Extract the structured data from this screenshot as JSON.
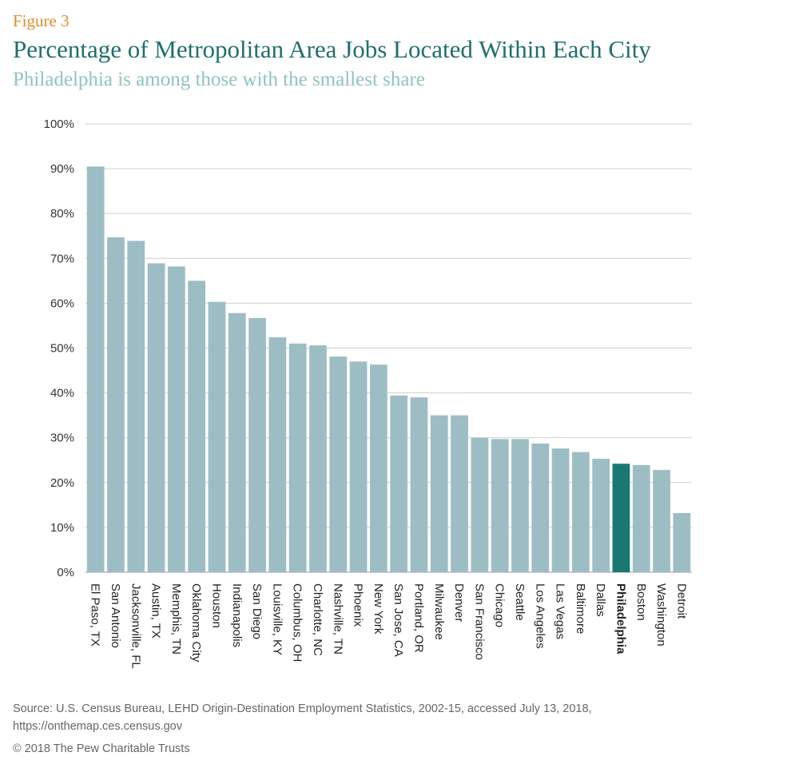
{
  "figure_label": "Figure 3",
  "colors": {
    "figure_label": "#e08e2a",
    "title": "#1e6f6c",
    "subtitle": "#8fc4c2",
    "bar": "#9dbdc5",
    "bar_highlight": "#1a7872",
    "grid": "#cfcfcf"
  },
  "chart_data": {
    "type": "bar",
    "title": "Percentage of Metropolitan Area Jobs Located Within Each City",
    "subtitle": "Philadelphia is among those with the smallest share",
    "xlabel": "",
    "ylabel": "",
    "ylim": [
      0,
      100
    ],
    "yticks": [
      "0%",
      "10%",
      "20%",
      "30%",
      "40%",
      "50%",
      "60%",
      "70%",
      "80%",
      "90%",
      "100%"
    ],
    "grid": true,
    "highlight": "Philadelphia",
    "categories": [
      "El Paso, TX",
      "San Antonio",
      "Jacksonville, FL",
      "Austin, TX",
      "Memphis, TN",
      "Oklahoma City",
      "Houston",
      "Indianapolis",
      "San Diego",
      "Louisville, KY",
      "Columbus, OH",
      "Charlotte, NC",
      "Nashville, TN",
      "Phoenix",
      "New York",
      "San Jose, CA",
      "Portland, OR",
      "Milwaukee",
      "Denver",
      "San Francisco",
      "Chicago",
      "Seattle",
      "Los Angeles",
      "Las Vegas",
      "Baltimore",
      "Dallas",
      "Philadelphia",
      "Boston",
      "Washington",
      "Detroit"
    ],
    "values": [
      90.5,
      74.7,
      73.9,
      68.9,
      68.2,
      65,
      60.3,
      57.8,
      56.7,
      52.4,
      51,
      50.6,
      48.1,
      47,
      46.3,
      39.4,
      39,
      35,
      35,
      30,
      29.7,
      29.7,
      28.7,
      27.6,
      26.8,
      25.3,
      24.2,
      23.9,
      22.8,
      13.2
    ]
  },
  "source": {
    "line1": "Source: U.S. Census Bureau, LEHD Origin-Destination Employment Statistics, 2002-15, accessed July 13, 2018,",
    "line2": "https://onthemap.ces.census.gov"
  },
  "copyright": "© 2018 The Pew Charitable Trusts"
}
